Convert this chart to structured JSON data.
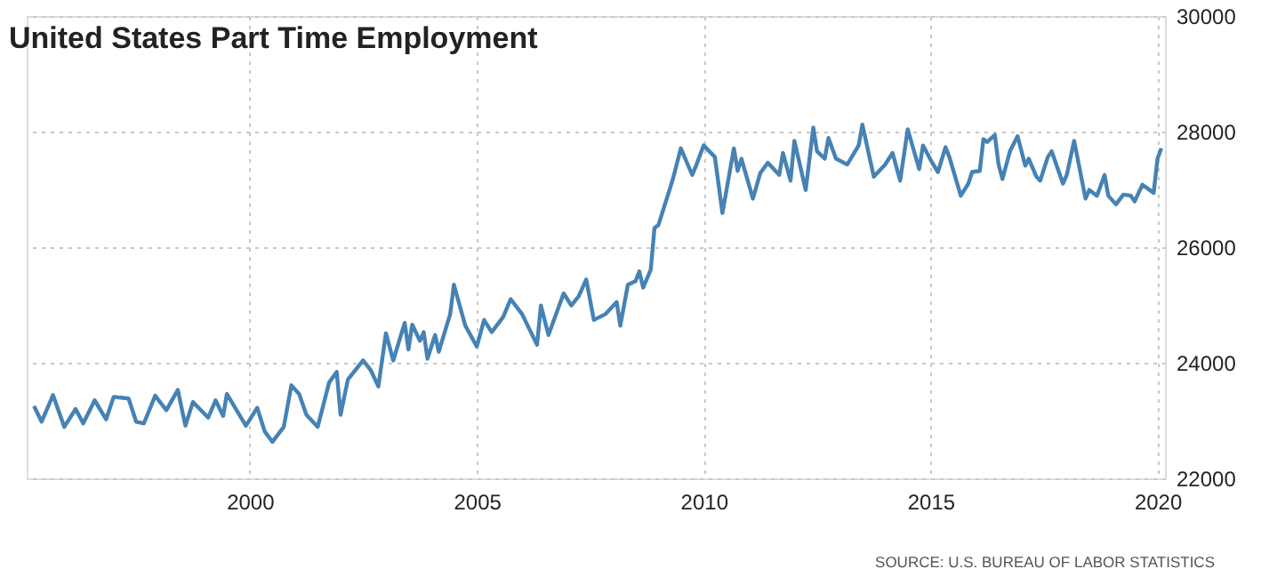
{
  "chart_data": {
    "type": "line",
    "title": "United States Part Time Employment",
    "annotations": [
      "SOURCE: U.S. BUREAU OF LABOR STATISTICS"
    ],
    "x": [
      "1995-04",
      "1995-06",
      "1995-09",
      "1995-12",
      "1996-03",
      "1996-05",
      "1996-08",
      "1996-11",
      "1997-01",
      "1997-05",
      "1997-07",
      "1997-09",
      "1997-12",
      "1998-03",
      "1998-06",
      "1998-08",
      "1998-10",
      "1999-02",
      "1999-04",
      "1999-06",
      "1999-07",
      "1999-12",
      "2000-03",
      "2000-05",
      "2000-07",
      "2000-10",
      "2000-12",
      "2001-02",
      "2001-04",
      "2001-07",
      "2001-10",
      "2001-12",
      "2002-01",
      "2002-03",
      "2002-07",
      "2002-09",
      "2002-11",
      "2003-01",
      "2003-03",
      "2003-06",
      "2003-07",
      "2003-08",
      "2003-10",
      "2003-11",
      "2003-12",
      "2004-02",
      "2004-03",
      "2004-06",
      "2004-07",
      "2004-10",
      "2005-01",
      "2005-03",
      "2005-05",
      "2005-08",
      "2005-10",
      "2006-01",
      "2006-05",
      "2006-06",
      "2006-08",
      "2006-12",
      "2007-02",
      "2007-04",
      "2007-06",
      "2007-08",
      "2007-11",
      "2008-02",
      "2008-03",
      "2008-05",
      "2008-07",
      "2008-08",
      "2008-09",
      "2008-11",
      "2008-12",
      "2009-01",
      "2009-04",
      "2009-05",
      "2009-07",
      "2009-10",
      "2009-11",
      "2010-01",
      "2010-04",
      "2010-06",
      "2010-09",
      "2010-10",
      "2010-11",
      "2011-02",
      "2011-04",
      "2011-06",
      "2011-09",
      "2011-10",
      "2011-12",
      "2012-01",
      "2012-04",
      "2012-06",
      "2012-07",
      "2012-09",
      "2012-10",
      "2012-12",
      "2013-03",
      "2013-06",
      "2013-07",
      "2013-10",
      "2014-01",
      "2014-03",
      "2014-05",
      "2014-07",
      "2014-10",
      "2014-11",
      "2015-01",
      "2015-03",
      "2015-05",
      "2015-06",
      "2015-09",
      "2015-11",
      "2015-12",
      "2016-02",
      "2016-03",
      "2016-04",
      "2016-06",
      "2016-07",
      "2016-08",
      "2016-10",
      "2016-12",
      "2017-02",
      "2017-03",
      "2017-05",
      "2017-06",
      "2017-08",
      "2017-09",
      "2017-12",
      "2018-01",
      "2018-03",
      "2018-06",
      "2018-07",
      "2018-09",
      "2018-11",
      "2018-12",
      "2019-02",
      "2019-04",
      "2019-06",
      "2019-07",
      "2019-09",
      "2019-12",
      "2020-01",
      "2020-02"
    ],
    "series": [
      {
        "color": "#4682b4",
        "values": [
          23250,
          22980,
          23440,
          22890,
          23200,
          22950,
          23350,
          23020,
          23410,
          23380,
          22980,
          22950,
          23430,
          23180,
          23530,
          22910,
          23320,
          23050,
          23350,
          23080,
          23460,
          22910,
          23220,
          22810,
          22630,
          22890,
          23610,
          23460,
          23100,
          22890,
          23660,
          23840,
          23100,
          23710,
          24040,
          23870,
          23590,
          24510,
          24040,
          24690,
          24230,
          24660,
          24380,
          24530,
          24070,
          24480,
          24190,
          24840,
          25350,
          24640,
          24280,
          24740,
          24530,
          24790,
          25100,
          24840,
          24310,
          24990,
          24480,
          25200,
          24990,
          25150,
          25440,
          24740,
          24840,
          25050,
          24640,
          25350,
          25410,
          25580,
          25300,
          25610,
          26330,
          26380,
          26990,
          27200,
          27710,
          27250,
          27410,
          27760,
          27560,
          26590,
          27710,
          27320,
          27530,
          26840,
          27280,
          27460,
          27250,
          27630,
          27150,
          27840,
          26990,
          28070,
          27660,
          27530,
          27890,
          27530,
          27430,
          27760,
          28120,
          27220,
          27430,
          27630,
          27150,
          28040,
          27350,
          27760,
          27510,
          27300,
          27730,
          27560,
          26890,
          27100,
          27300,
          27320,
          27870,
          27820,
          27940,
          27430,
          27180,
          27660,
          27920,
          27410,
          27530,
          27220,
          27150,
          27560,
          27660,
          27100,
          27250,
          27840,
          26840,
          26990,
          26890,
          27250,
          26890,
          26740,
          26910,
          26890,
          26790,
          27080,
          26940,
          27530,
          27710
        ]
      }
    ],
    "xlim": [
      "1995-02",
      "2020-03"
    ],
    "ylim": [
      22000,
      30000
    ],
    "xticks": [
      "2000",
      "2005",
      "2010",
      "2015",
      "2020"
    ],
    "yticks": [
      22000,
      24000,
      26000,
      28000,
      30000
    ],
    "grid": true,
    "marker": "none",
    "line_style": "solid"
  }
}
